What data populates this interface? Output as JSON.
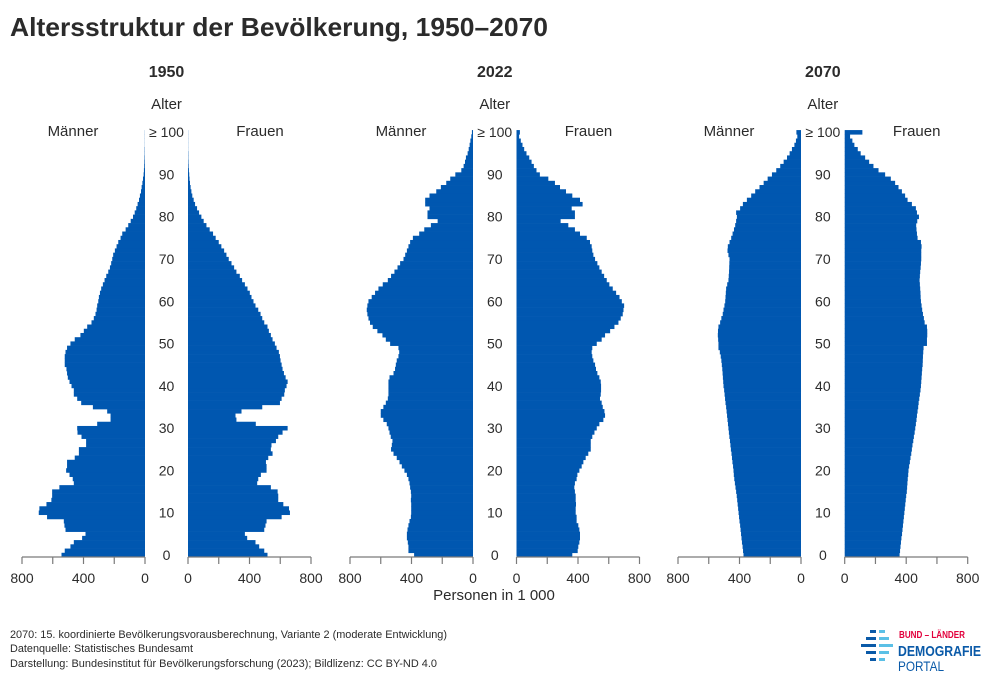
{
  "title": "Altersstruktur der Bevölkerung, 1950–2070",
  "x_axis_label": "Personen in 1 000",
  "footer": [
    "2070: 15. koordinierte Bevölkerungsvorausberechnung, Variante 2 (moderate Entwicklung)",
    "Datenquelle: Statistisches Bundesamt",
    "Darstellung: Bundesinstitut für Bevölkerungsforschung (2023); Bildlizenz: CC BY-ND 4.0"
  ],
  "logo": {
    "line1": "BUND – LÄNDER",
    "line2": "DEMOGRAFIE",
    "line3": "PORTAL",
    "red": "#e2003c",
    "blue": "#0a5aa8",
    "light_blue": "#5bc0e6"
  },
  "colors": {
    "bar": "#0057b0",
    "text": "#2b2b2b",
    "axis": "#7a7a7a"
  },
  "chart_data": [
    {
      "type": "bar",
      "orientation": "horizontal",
      "subtype": "population-pyramid",
      "title": "1950",
      "age_label": "Alter",
      "age_range": [
        0,
        100
      ],
      "age_ticks": [
        "0",
        "10",
        "20",
        "30",
        "40",
        "50",
        "60",
        "70",
        "80",
        "90",
        "≥ 100"
      ],
      "xlim": [
        0,
        800
      ],
      "x_ticks": [
        0,
        200,
        400,
        600,
        800
      ],
      "x_tick_labels_left": [
        "800",
        "400",
        "0"
      ],
      "x_tick_labels_right": [
        "0",
        "400",
        "800"
      ],
      "series": [
        {
          "name": "Männer",
          "values": [
            543,
            522,
            485,
            463,
            409,
            387,
            517,
            524,
            528,
            637,
            691,
            687,
            641,
            609,
            604,
            604,
            557,
            463,
            470,
            491,
            513,
            507,
            507,
            457,
            430,
            430,
            383,
            383,
            413,
            439,
            441,
            311,
            224,
            224,
            246,
            339,
            415,
            441,
            463,
            463,
            478,
            491,
            502,
            507,
            511,
            522,
            522,
            522,
            517,
            507,
            485,
            457,
            420,
            398,
            376,
            348,
            333,
            322,
            315,
            311,
            304,
            300,
            293,
            285,
            274,
            263,
            252,
            239,
            228,
            220,
            213,
            207,
            196,
            185,
            174,
            159,
            148,
            126,
            109,
            93,
            78,
            67,
            57,
            48,
            39,
            33,
            26,
            22,
            17,
            13,
            9,
            7,
            5,
            4,
            3,
            2,
            2,
            1,
            1,
            1,
            1
          ]
        },
        {
          "name": "Frauen",
          "values": [
            517,
            496,
            463,
            439,
            385,
            370,
            496,
            504,
            511,
            609,
            663,
            657,
            620,
            587,
            587,
            583,
            539,
            450,
            457,
            474,
            511,
            511,
            507,
            522,
            550,
            539,
            543,
            572,
            587,
            615,
            648,
            441,
            315,
            309,
            348,
            483,
            598,
            609,
            626,
            630,
            641,
            648,
            635,
            624,
            615,
            609,
            602,
            598,
            591,
            576,
            565,
            550,
            539,
            526,
            517,
            496,
            483,
            472,
            457,
            439,
            426,
            413,
            402,
            387,
            370,
            352,
            337,
            315,
            300,
            283,
            265,
            250,
            235,
            217,
            200,
            180,
            163,
            141,
            120,
            102,
            87,
            72,
            59,
            46,
            37,
            28,
            22,
            17,
            13,
            10,
            8,
            6,
            4,
            3,
            2,
            2,
            1,
            1,
            1,
            1,
            1
          ]
        }
      ]
    },
    {
      "type": "bar",
      "orientation": "horizontal",
      "subtype": "population-pyramid",
      "title": "2022",
      "age_label": "Alter",
      "age_range": [
        0,
        100
      ],
      "age_ticks": [
        "0",
        "10",
        "20",
        "30",
        "40",
        "50",
        "60",
        "70",
        "80",
        "90",
        "≥ 100"
      ],
      "xlim": [
        0,
        800
      ],
      "x_ticks": [
        0,
        200,
        400,
        600,
        800
      ],
      "x_tick_labels_left": [
        "800",
        "400",
        "0"
      ],
      "x_tick_labels_right": [
        "0",
        "400",
        "800"
      ],
      "series": [
        {
          "name": "Männer",
          "values": [
            383,
            420,
            420,
            424,
            430,
            430,
            426,
            420,
            413,
            404,
            402,
            402,
            402,
            404,
            402,
            404,
            409,
            413,
            420,
            430,
            446,
            463,
            478,
            496,
            517,
            533,
            528,
            524,
            535,
            543,
            550,
            561,
            583,
            600,
            600,
            583,
            567,
            554,
            550,
            550,
            550,
            550,
            543,
            517,
            507,
            502,
            496,
            485,
            480,
            485,
            539,
            567,
            589,
            622,
            652,
            670,
            680,
            687,
            691,
            687,
            680,
            659,
            637,
            615,
            587,
            554,
            533,
            511,
            491,
            474,
            452,
            441,
            430,
            420,
            409,
            391,
            350,
            317,
            274,
            230,
            296,
            296,
            283,
            311,
            311,
            283,
            239,
            209,
            174,
            148,
            115,
            76,
            61,
            52,
            46,
            35,
            28,
            22,
            17,
            11,
            7
          ]
        },
        {
          "name": "Frauen",
          "values": [
            363,
            398,
            402,
            409,
            413,
            413,
            409,
            402,
            391,
            391,
            385,
            385,
            387,
            385,
            385,
            380,
            376,
            380,
            391,
            396,
            409,
            424,
            435,
            450,
            467,
            483,
            483,
            483,
            493,
            507,
            522,
            539,
            565,
            576,
            572,
            561,
            554,
            543,
            548,
            550,
            550,
            548,
            539,
            526,
            517,
            511,
            500,
            493,
            489,
            493,
            522,
            554,
            576,
            609,
            637,
            663,
            678,
            691,
            696,
            700,
            685,
            670,
            648,
            626,
            604,
            587,
            570,
            554,
            539,
            526,
            511,
            500,
            493,
            489,
            478,
            457,
            413,
            380,
            337,
            287,
            380,
            380,
            359,
            430,
            413,
            363,
            322,
            283,
            250,
            207,
            152,
            130,
            113,
            98,
            83,
            65,
            50,
            39,
            28,
            17,
            22
          ]
        }
      ]
    },
    {
      "type": "bar",
      "orientation": "horizontal",
      "subtype": "population-pyramid",
      "title": "2070",
      "age_label": "Alter",
      "age_range": [
        0,
        100
      ],
      "age_ticks": [
        "0",
        "10",
        "20",
        "30",
        "40",
        "50",
        "60",
        "70",
        "80",
        "90",
        "≥ 100"
      ],
      "xlim": [
        0,
        800
      ],
      "x_ticks": [
        0,
        200,
        400,
        600,
        800
      ],
      "x_tick_labels_left": [
        "800",
        "400",
        "0"
      ],
      "x_tick_labels_right": [
        "0",
        "400",
        "800"
      ],
      "series": [
        {
          "name": "Männer",
          "values": [
            374,
            377,
            380,
            384,
            387,
            390,
            393,
            396,
            400,
            403,
            406,
            409,
            412,
            415,
            418,
            422,
            426,
            430,
            434,
            437,
            439,
            442,
            446,
            449,
            452,
            456,
            459,
            462,
            466,
            469,
            472,
            475,
            478,
            481,
            484,
            487,
            491,
            494,
            497,
            500,
            504,
            506,
            508,
            510,
            512,
            515,
            518,
            522,
            528,
            537,
            537,
            539,
            541,
            540,
            537,
            526,
            518,
            509,
            504,
            498,
            493,
            491,
            489,
            487,
            480,
            472,
            470,
            468,
            467,
            466,
            465,
            472,
            478,
            476,
            465,
            454,
            445,
            436,
            428,
            422,
            417,
            422,
            396,
            378,
            352,
            324,
            298,
            270,
            243,
            217,
            189,
            161,
            135,
            113,
            91,
            74,
            59,
            43,
            33,
            24,
            30
          ]
        },
        {
          "name": "Frauen",
          "values": [
            357,
            360,
            363,
            366,
            369,
            373,
            376,
            379,
            382,
            385,
            388,
            391,
            394,
            397,
            400,
            404,
            406,
            408,
            410,
            413,
            415,
            419,
            424,
            428,
            433,
            437,
            441,
            446,
            450,
            455,
            459,
            463,
            467,
            470,
            474,
            478,
            481,
            485,
            489,
            493,
            496,
            498,
            500,
            502,
            504,
            507,
            508,
            509,
            511,
            513,
            535,
            535,
            537,
            537,
            535,
            520,
            515,
            509,
            504,
            500,
            496,
            494,
            493,
            491,
            489,
            487,
            489,
            491,
            494,
            496,
            498,
            498,
            498,
            500,
            496,
            474,
            470,
            467,
            465,
            472,
            483,
            470,
            463,
            437,
            409,
            393,
            372,
            350,
            328,
            300,
            263,
            220,
            187,
            159,
            133,
            104,
            85,
            63,
            50,
            35,
            115
          ]
        }
      ]
    }
  ]
}
